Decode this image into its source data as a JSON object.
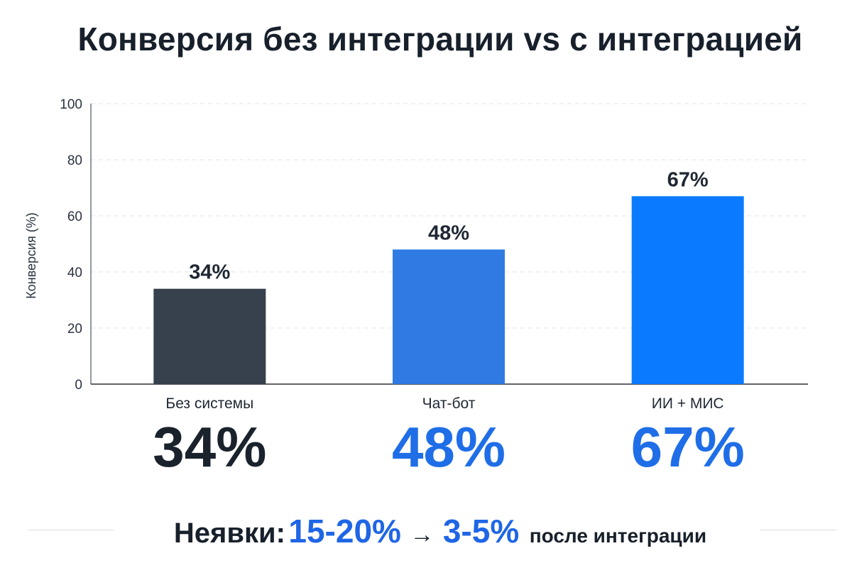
{
  "chart_data": {
    "type": "bar",
    "title": "Конверсия без интеграции vs с интеграцией",
    "ylabel": "Конверсия (%)",
    "xlabel": "",
    "ylim": [
      0,
      100
    ],
    "yticks": [
      "0",
      "20",
      "40",
      "60",
      "80",
      "100"
    ],
    "grid": true,
    "categories": [
      "Без системы",
      "Чат-бот",
      "ИИ + МИС"
    ],
    "values": [
      34,
      48,
      67
    ],
    "value_labels": [
      "34%",
      "48%",
      "67%"
    ],
    "colors": [
      "#36414d",
      "#2f7be3",
      "#0a7bff"
    ]
  },
  "summary": {
    "values": [
      "34%",
      "48%",
      "67%"
    ],
    "colors": [
      "#1a222c",
      "#1f6ee8",
      "#1f6ee8"
    ]
  },
  "footer": {
    "label": "Неявки:",
    "before": "15-20%",
    "arrow": "→",
    "after": "3-5%",
    "suffix": "после интеграции"
  }
}
